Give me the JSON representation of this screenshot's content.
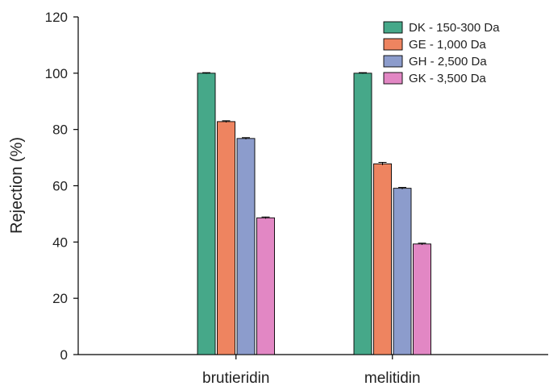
{
  "chart_data": {
    "type": "bar",
    "title": "",
    "xlabel": "",
    "ylabel": "Rejection (%)",
    "ylim": [
      0,
      120
    ],
    "yticks": [
      0,
      20,
      40,
      60,
      80,
      100,
      120
    ],
    "categories": [
      "brutieridin",
      "melitidin"
    ],
    "series": [
      {
        "name": "DK - 150-300 Da",
        "color": "#46a889",
        "values": [
          100,
          100
        ],
        "errors": [
          0.2,
          0.2
        ]
      },
      {
        "name": "GE - 1,000 Da",
        "color": "#ee8460",
        "values": [
          82.8,
          67.8
        ],
        "errors": [
          0.3,
          0.5
        ]
      },
      {
        "name": "GH - 2,500 Da",
        "color": "#8c9ccc",
        "values": [
          76.8,
          59.1
        ],
        "errors": [
          0.3,
          0.3
        ]
      },
      {
        "name": "GK - 3,500 Da",
        "color": "#e287c4",
        "values": [
          48.6,
          39.3
        ],
        "errors": [
          0.3,
          0.3
        ]
      }
    ],
    "legend": "top-right",
    "grid": false
  }
}
